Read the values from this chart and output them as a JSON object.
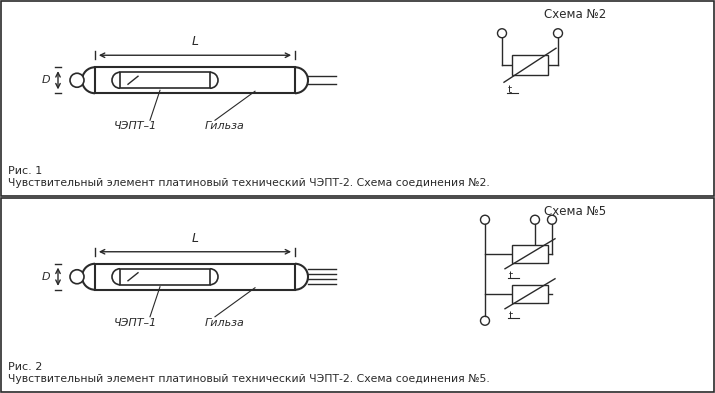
{
  "bg_color": "#ffffff",
  "line_color": "#2a2a2a",
  "fig_width": 7.15,
  "fig_height": 3.93,
  "dpi": 100,
  "panel1": {
    "title": "Схема №2",
    "caption_fig": "Рис. 1",
    "caption_text": "Чувствительный элемент платиновый технический ЧЭПТ-2. Схема соединения №2.",
    "label_chept": "ЧЭПТ–1",
    "label_gilza": "Гильза"
  },
  "panel2": {
    "title": "Схема №5",
    "caption_fig": "Рис. 2",
    "caption_text": "Чувствительный элемент платиновый технический ЧЭПТ-2. Схема соединения №5.",
    "label_chept": "ЧЭПТ–1",
    "label_gilza": "Гильза"
  }
}
